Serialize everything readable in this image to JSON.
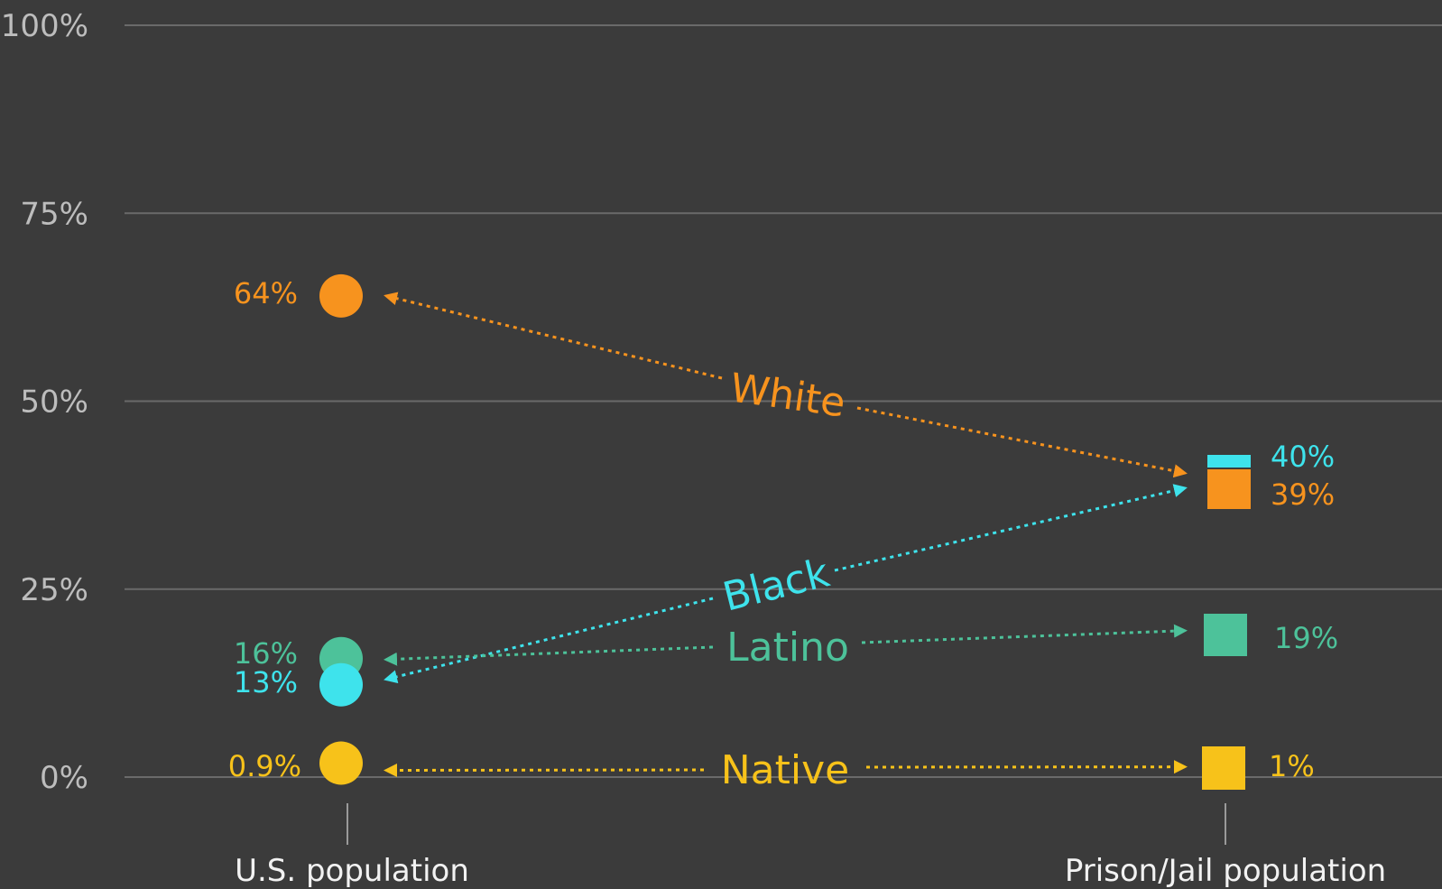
{
  "chart_data": {
    "type": "scatter",
    "categories": [
      "U.S. population",
      "Prison/Jail population"
    ],
    "y_ticks": [
      "100%",
      "75%",
      "50%",
      "25%",
      "0%"
    ],
    "ylim": [
      0,
      100
    ],
    "grid": true,
    "series": [
      {
        "name": "White",
        "color": "#f7931e",
        "values": [
          64,
          39
        ],
        "labels": [
          "64%",
          "39%"
        ]
      },
      {
        "name": "Black",
        "color": "#3ee3ec",
        "values": [
          13,
          40
        ],
        "labels": [
          "13%",
          "40%"
        ]
      },
      {
        "name": "Latino",
        "color": "#4dc29a",
        "values": [
          16,
          19
        ],
        "labels": [
          "16%",
          "19%"
        ]
      },
      {
        "name": "Native",
        "color": "#f7c21a",
        "values": [
          0.9,
          1
        ],
        "labels": [
          "0.9%",
          "1%"
        ]
      }
    ]
  }
}
